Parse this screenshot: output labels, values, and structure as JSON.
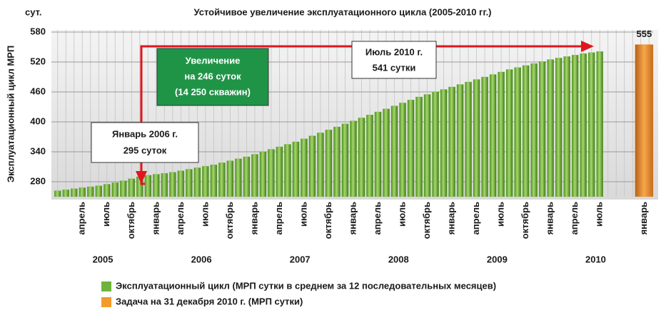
{
  "chart_data": {
    "type": "bar",
    "title": "Устойчивое увеличение эксплуатационного цикла (2005-2010 гг.)",
    "y_unit": "сут.",
    "y_label": "Эксплуатационный цикл МРП",
    "categories": [
      null,
      null,
      null,
      "апрель",
      null,
      null,
      "июль",
      null,
      null,
      "октябрь",
      null,
      null,
      "январь",
      null,
      null,
      "апрель",
      null,
      null,
      "июль",
      null,
      null,
      "октябрь",
      null,
      null,
      "январь",
      null,
      null,
      "апрель",
      null,
      null,
      "июль",
      null,
      null,
      "октябрь",
      null,
      null,
      "январь",
      null,
      null,
      "апрель",
      null,
      null,
      "июль",
      null,
      null,
      "октябрь",
      null,
      null,
      "январь",
      null,
      null,
      "апрель",
      null,
      null,
      "июль",
      null,
      null,
      "октябрь",
      null,
      null,
      "январь",
      null,
      null,
      "апрель",
      null,
      null,
      "июль",
      null,
      null,
      null,
      null,
      null,
      "январь"
    ],
    "years": [
      "2005",
      "2006",
      "2007",
      "2008",
      "2009",
      "2010"
    ],
    "series": [
      {
        "name": "Эксплуатационный цикл (МРП сутки в среднем за 12 последовательных месяцев)",
        "color": "#6fb43a",
        "values": [
          262,
          264,
          266,
          268,
          270,
          272,
          275,
          278,
          282,
          286,
          290,
          293,
          295,
          297,
          299,
          302,
          305,
          308,
          311,
          314,
          318,
          322,
          326,
          330,
          335,
          340,
          345,
          350,
          355,
          360,
          366,
          372,
          378,
          384,
          390,
          396,
          402,
          408,
          414,
          420,
          426,
          432,
          438,
          444,
          450,
          455,
          460,
          465,
          470,
          475,
          480,
          485,
          490,
          495,
          500,
          505,
          509,
          513,
          517,
          521,
          525,
          528,
          531,
          534,
          537,
          539,
          541,
          null,
          null,
          null,
          null,
          null,
          null
        ]
      },
      {
        "name": "Задача на 31 декабря 2010 г. (МРП сутки)",
        "color": "#f39a2c",
        "values": [
          null,
          null,
          null,
          null,
          null,
          null,
          null,
          null,
          null,
          null,
          null,
          null,
          null,
          null,
          null,
          null,
          null,
          null,
          null,
          null,
          null,
          null,
          null,
          null,
          null,
          null,
          null,
          null,
          null,
          null,
          null,
          null,
          null,
          null,
          null,
          null,
          null,
          null,
          null,
          null,
          null,
          null,
          null,
          null,
          null,
          null,
          null,
          null,
          null,
          null,
          null,
          null,
          null,
          null,
          null,
          null,
          null,
          null,
          null,
          null,
          null,
          null,
          null,
          null,
          null,
          null,
          null,
          null,
          null,
          null,
          null,
          null,
          555
        ]
      }
    ],
    "ylim": [
      250,
      580
    ],
    "yticks": [
      280,
      340,
      400,
      460,
      520,
      580
    ],
    "grid": true,
    "annotations": [
      {
        "lines": [
          "Январь 2006 г.",
          "295 суток"
        ]
      },
      {
        "lines": [
          "Увеличение",
          "на 246 суток",
          "(14 250 скважин)"
        ]
      },
      {
        "lines": [
          "Июль 2010 г.",
          "541 сутки"
        ]
      }
    ]
  }
}
